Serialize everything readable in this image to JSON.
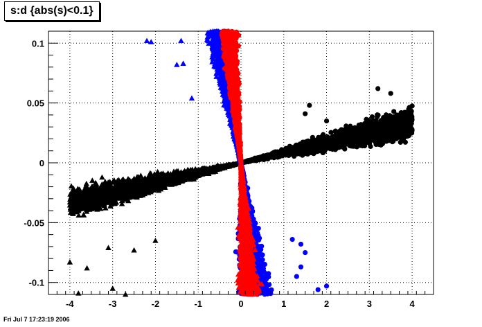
{
  "title": "s:d {abs(s)<0.1}",
  "timestamp": "Fri Jul  7 17:23:19 2006",
  "chart_data": {
    "type": "scatter",
    "title": "s:d {abs(s)<0.1}",
    "xlabel": "",
    "ylabel": "",
    "xlim": [
      -4.5,
      4.5
    ],
    "ylim": [
      -0.11,
      0.11
    ],
    "grid": true,
    "x_ticks": [
      -4,
      -3,
      -2,
      -1,
      0,
      1,
      2,
      3,
      4
    ],
    "x_tick_labels": [
      "-4",
      "-3",
      "-2",
      "-1",
      "0",
      "1",
      "2",
      "3",
      "4"
    ],
    "y_ticks": [
      -0.1,
      -0.05,
      0,
      0.05,
      0.1
    ],
    "y_tick_labels": [
      "-0.1",
      "-0.05",
      "0",
      "0.05",
      "0.1"
    ],
    "series": [
      {
        "color": "#000000",
        "markers": [
          {
            "shape": "circle",
            "branch": "right",
            "x_range": [
              0,
              4
            ],
            "slope": 0.0083,
            "spread_at_x4": 0.012,
            "outliers": [
              [
                4.0,
                0.0475
              ],
              [
                3.5,
                0.058
              ],
              [
                3.2,
                0.062
              ],
              [
                1.6,
                0.048
              ],
              [
                2.0,
                0.035
              ],
              [
                1.5,
                0.041
              ]
            ]
          },
          {
            "shape": "triangle",
            "branch": "left",
            "x_range": [
              -4,
              0
            ],
            "slope": 0.0083,
            "spread_at_x4": 0.012,
            "outliers": [
              [
                -4.0,
                -0.083
              ],
              [
                -3.6,
                -0.088
              ],
              [
                -3.1,
                -0.071
              ],
              [
                -2.5,
                -0.073
              ],
              [
                -2.0,
                -0.065
              ],
              [
                -3.8,
                -0.109
              ],
              [
                -3.0,
                -0.105
              ],
              [
                -2.7,
                -0.11
              ]
            ]
          }
        ]
      },
      {
        "color": "#0000ff",
        "markers": [
          {
            "shape": "triangle",
            "branch": "upper",
            "y_range": [
              0,
              0.11
            ],
            "x_at_top": -0.55,
            "spread_at_top": 0.25,
            "outliers": [
              [
                -2.2,
                0.102
              ],
              [
                -2.1,
                0.101
              ],
              [
                -1.4,
                0.102
              ],
              [
                -1.15,
                0.054
              ],
              [
                -1.35,
                0.083
              ],
              [
                -1.5,
                0.082
              ]
            ]
          },
          {
            "shape": "circle",
            "branch": "lower",
            "y_range": [
              -0.11,
              0
            ],
            "x_at_bottom": 0.35,
            "spread_at_bottom": 0.35,
            "outliers": [
              [
                1.5,
                -0.075
              ],
              [
                1.4,
                -0.087
              ],
              [
                1.3,
                -0.095
              ],
              [
                2.0,
                -0.103
              ],
              [
                1.8,
                -0.106
              ],
              [
                1.2,
                -0.064
              ],
              [
                1.4,
                -0.068
              ]
            ]
          }
        ]
      },
      {
        "color": "#ff0000",
        "markers": [
          {
            "shape": "circle",
            "branch": "upper",
            "y_range": [
              0,
              0.11
            ],
            "x_at_top": -0.3,
            "spread_at_top": 0.17
          },
          {
            "shape": "triangle",
            "branch": "lower",
            "y_range": [
              -0.11,
              0
            ],
            "x_at_bottom": 0.2,
            "spread_at_bottom": 0.22
          }
        ]
      }
    ]
  }
}
